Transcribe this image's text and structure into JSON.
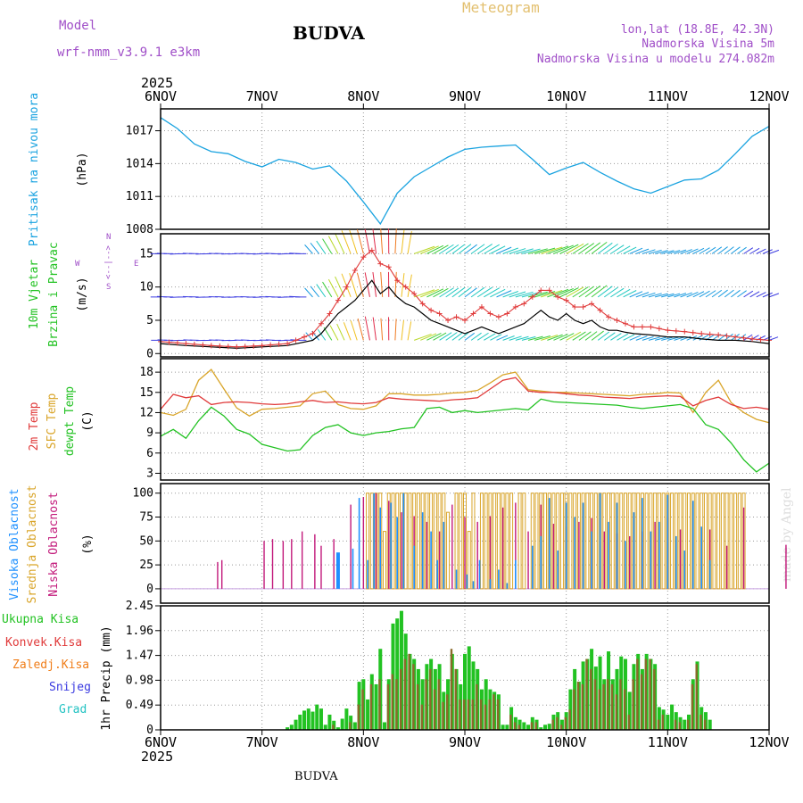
{
  "header": {
    "model_label": "Model",
    "model_name": "wrf-nmm_v3.9.1 e3km",
    "city_title": "BUDVA",
    "meteogram_label": "Meteogram",
    "lonlat": "lon,lat (18.8E, 42.3N)",
    "elevation": "Nadmorska Visina 5m",
    "model_elevation": "Nadmorska Visina u modelu 274.082m",
    "year_top": "2025",
    "year_bottom": "2025",
    "footer_city": "BUDVA",
    "watermark": "made by Angel"
  },
  "colors": {
    "pressure": "#1aa3e0",
    "temp2m": "#e03a3a",
    "sfc": "#d9a52a",
    "dew": "#22c222",
    "high_cloud": "#1e90ff",
    "mid_cloud": "#d9a52a",
    "low_cloud": "#c2187a",
    "total_precip": "#22c222",
    "conv_precip": "#e03a3a",
    "frozen_precip": "#f07e1a",
    "snow": "#3a3ae0",
    "hail": "#22c2c2",
    "model_text": "#a04fc8",
    "wind_line": "#000000",
    "gust": "#e03a3a"
  },
  "chart_data": [
    {
      "type": "line",
      "id": "pressure",
      "ylabel_main": "Pritisak na nivou mora",
      "ylabel_unit": "(hPa)",
      "yticks": [
        1008,
        1011,
        1014,
        1017
      ],
      "ylim": [
        1008,
        1019
      ],
      "x_hours": [
        0,
        4,
        8,
        12,
        16,
        20,
        24,
        28,
        32,
        36,
        40,
        44,
        48,
        52,
        56,
        60,
        64,
        68,
        72,
        76,
        80,
        84,
        88,
        92,
        96,
        100,
        104,
        108,
        112,
        116,
        120,
        124,
        128,
        132,
        136,
        140,
        144
      ],
      "values": [
        1018.2,
        1017.2,
        1015.8,
        1015.1,
        1014.9,
        1014.2,
        1013.7,
        1014.4,
        1014.1,
        1013.5,
        1013.8,
        1012.4,
        1010.5,
        1008.5,
        1011.3,
        1012.8,
        1013.7,
        1014.6,
        1015.3,
        1015.5,
        1015.6,
        1015.7,
        1014.4,
        1013.0,
        1013.6,
        1014.1,
        1013.2,
        1012.4,
        1011.7,
        1011.3,
        1011.9,
        1012.5,
        1012.6,
        1013.4,
        1014.9,
        1016.5,
        1017.4
      ]
    },
    {
      "type": "line",
      "id": "wind",
      "ylabel_main": "10m Vjetar",
      "ylabel_sub": "Brzina i Pravac",
      "ylabel_unit": "(m/s)",
      "compass": [
        "W",
        "<--|-->",
        "E",
        "N",
        "S"
      ],
      "yticks": [
        0,
        5,
        10,
        15
      ],
      "ylim": [
        -0.5,
        18
      ],
      "arrow_rows": [
        2,
        8.5,
        15
      ],
      "x_hours": [
        0,
        6,
        12,
        18,
        24,
        30,
        36,
        38,
        40,
        42,
        44,
        46,
        48,
        50,
        52,
        54,
        56,
        58,
        60,
        62,
        64,
        66,
        68,
        70,
        72,
        74,
        76,
        78,
        80,
        82,
        84,
        86,
        88,
        90,
        92,
        94,
        96,
        98,
        100,
        102,
        104,
        106,
        108,
        110,
        112,
        116,
        120,
        124,
        128,
        132,
        136,
        140,
        144
      ],
      "speed": [
        1.5,
        1.2,
        1.0,
        0.8,
        1.0,
        1.2,
        2.0,
        3.0,
        4.5,
        6.0,
        7.0,
        8.0,
        9.5,
        11.0,
        9.0,
        10.0,
        8.5,
        7.5,
        7.0,
        6.0,
        5.0,
        4.5,
        4.0,
        3.5,
        3.0,
        3.5,
        4.0,
        3.5,
        3.0,
        3.5,
        4.0,
        4.5,
        5.5,
        6.5,
        5.5,
        5.0,
        6.0,
        5.0,
        4.5,
        5.0,
        4.0,
        3.5,
        3.5,
        3.2,
        3.0,
        2.8,
        2.5,
        2.5,
        2.2,
        2.0,
        2.0,
        1.8,
        1.5
      ],
      "gust": [
        1.8,
        1.5,
        1.2,
        1.0,
        1.2,
        1.5,
        3.0,
        4.5,
        6.0,
        8.0,
        10.0,
        12.5,
        14.5,
        15.5,
        13.5,
        13.0,
        11.0,
        10.0,
        9.0,
        7.5,
        6.5,
        6.0,
        5.0,
        5.5,
        5.0,
        6.0,
        7.0,
        6.0,
        5.5,
        6.0,
        7.0,
        7.5,
        8.5,
        9.5,
        9.5,
        8.5,
        8.0,
        7.0,
        7.0,
        7.5,
        6.5,
        5.5,
        5.0,
        4.5,
        4.0,
        4.0,
        3.5,
        3.3,
        3.0,
        2.8,
        2.5,
        2.2,
        2.0
      ]
    },
    {
      "type": "line",
      "id": "temperature",
      "ylabel_main": "2m Temp",
      "ylabel_sub": "SFC Temp",
      "ylabel_sub2": "dewpt Temp",
      "ylabel_unit": "(C)",
      "yticks": [
        3,
        6,
        9,
        12,
        15,
        18
      ],
      "ylim": [
        2,
        20
      ],
      "x_hours": [
        0,
        3,
        6,
        9,
        12,
        15,
        18,
        21,
        24,
        27,
        30,
        33,
        36,
        39,
        42,
        45,
        48,
        51,
        54,
        57,
        60,
        63,
        66,
        69,
        72,
        75,
        78,
        81,
        84,
        87,
        90,
        93,
        96,
        99,
        102,
        105,
        108,
        111,
        114,
        117,
        120,
        123,
        126,
        129,
        132,
        135,
        138,
        141,
        144
      ],
      "t2m": [
        12.5,
        14.7,
        14.2,
        14.5,
        13.2,
        13.5,
        13.6,
        13.5,
        13.3,
        13.2,
        13.3,
        13.6,
        13.8,
        13.5,
        13.6,
        13.4,
        13.3,
        13.5,
        14.2,
        14.0,
        13.9,
        13.8,
        13.7,
        13.9,
        14.0,
        14.2,
        15.5,
        16.8,
        17.2,
        15.2,
        15.0,
        15.0,
        14.8,
        14.6,
        14.5,
        14.3,
        14.2,
        14.1,
        14.3,
        14.4,
        14.5,
        14.4,
        13.0,
        13.8,
        14.3,
        13.2,
        12.6,
        12.8,
        12.5
      ],
      "sfc": [
        12.0,
        11.6,
        12.5,
        16.8,
        18.4,
        15.5,
        12.7,
        11.5,
        12.5,
        12.6,
        12.8,
        13.0,
        14.8,
        15.2,
        13.2,
        12.6,
        12.5,
        13.0,
        14.8,
        14.8,
        14.6,
        14.6,
        14.7,
        14.9,
        15.0,
        15.3,
        16.4,
        17.6,
        18.0,
        15.4,
        15.2,
        15.0,
        15.0,
        14.9,
        14.8,
        14.7,
        14.6,
        14.5,
        14.7,
        14.8,
        15.0,
        14.9,
        12.0,
        15.0,
        16.8,
        13.5,
        12.0,
        11.0,
        10.5
      ],
      "dew": [
        8.5,
        9.5,
        8.2,
        10.8,
        12.8,
        11.5,
        9.5,
        8.8,
        7.3,
        6.8,
        6.3,
        6.5,
        8.6,
        9.8,
        10.2,
        9.0,
        8.6,
        9.0,
        9.2,
        9.6,
        9.8,
        12.6,
        12.8,
        12.0,
        12.3,
        12.0,
        12.2,
        12.4,
        12.6,
        12.4,
        14.0,
        13.6,
        13.5,
        13.4,
        13.3,
        13.2,
        13.1,
        12.8,
        12.6,
        12.8,
        13.0,
        13.2,
        12.6,
        10.2,
        9.5,
        7.5,
        5.0,
        3.2,
        4.5
      ]
    },
    {
      "type": "bar",
      "id": "clouds",
      "ylabel_high": "Visoka Oblacnost",
      "ylabel_mid": "Srednja Oblacnost",
      "ylabel_low": "Niska Oblacnost",
      "ylabel_unit": "(%)",
      "yticks": [
        0,
        25,
        50,
        75,
        100
      ],
      "ylim": [
        0,
        100
      ],
      "low_x": [
        13.5,
        14.5,
        24.5,
        26.5,
        29,
        31,
        33.5,
        36.5,
        38,
        41,
        45,
        48,
        51,
        54,
        57,
        60,
        63,
        66,
        69,
        72,
        75,
        78,
        81,
        84,
        87,
        90,
        93,
        96,
        99,
        102,
        105,
        108,
        111,
        114,
        117,
        120,
        123,
        126,
        130,
        134,
        138,
        148
      ],
      "low_v": [
        28,
        30,
        50,
        52,
        50,
        52,
        60,
        57,
        45,
        52,
        88,
        96,
        100,
        92,
        80,
        76,
        70,
        60,
        88,
        75,
        70,
        76,
        85,
        90,
        60,
        88,
        68,
        65,
        70,
        74,
        60,
        58,
        55,
        60,
        70,
        75,
        62,
        82,
        62,
        45,
        85,
        46
      ],
      "mid_x": [
        49,
        50,
        51,
        52,
        53,
        54,
        55,
        56,
        57,
        58,
        59,
        60,
        61,
        62,
        63,
        64,
        65,
        66,
        67,
        68,
        70,
        71,
        72,
        73,
        74,
        76,
        77,
        78,
        79,
        80,
        81,
        82,
        83,
        85,
        86,
        88,
        89,
        90,
        91,
        92,
        93,
        94,
        95,
        96,
        97,
        98,
        99,
        100,
        101,
        102,
        103,
        104,
        105,
        106,
        107,
        108,
        109,
        110,
        111,
        112,
        113,
        114,
        115,
        116,
        117,
        118,
        119,
        120,
        121,
        122,
        123,
        124,
        125,
        126,
        127,
        128,
        129,
        130,
        131,
        132,
        133,
        134,
        135,
        136,
        137,
        138
      ],
      "mid_v": [
        100,
        100,
        100,
        100,
        60,
        100,
        100,
        100,
        100,
        100,
        100,
        100,
        100,
        100,
        100,
        100,
        100,
        100,
        100,
        80,
        100,
        100,
        100,
        60,
        100,
        100,
        100,
        100,
        100,
        100,
        100,
        100,
        100,
        100,
        100,
        100,
        100,
        100,
        100,
        100,
        100,
        100,
        100,
        100,
        100,
        100,
        100,
        100,
        100,
        100,
        100,
        100,
        100,
        100,
        100,
        100,
        100,
        100,
        100,
        100,
        100,
        100,
        100,
        100,
        100,
        100,
        100,
        100,
        100,
        100,
        100,
        100,
        100,
        100,
        100,
        100,
        100,
        100,
        100,
        100,
        100,
        100,
        100,
        100,
        100,
        100
      ],
      "high_x": [
        42,
        45.5,
        47,
        49,
        50.5,
        52,
        54.5,
        56,
        57.5,
        60,
        62,
        64,
        65.5,
        67,
        70,
        72.5,
        74,
        75.5,
        78,
        80,
        82,
        84,
        88,
        90,
        92,
        94,
        96,
        98,
        100,
        102,
        104,
        106,
        108,
        110,
        112,
        114,
        116,
        118,
        120,
        122,
        124,
        126,
        128,
        130
      ],
      "high_v": [
        38,
        42,
        95,
        30,
        100,
        85,
        90,
        75,
        100,
        45,
        80,
        60,
        30,
        70,
        20,
        15,
        8,
        30,
        10,
        20,
        6,
        30,
        45,
        55,
        95,
        40,
        90,
        75,
        90,
        60,
        100,
        70,
        90,
        50,
        80,
        95,
        60,
        70,
        98,
        55,
        40,
        92,
        65,
        30
      ]
    },
    {
      "type": "bar",
      "id": "precip",
      "ylabel_main": "1hr Precip (mm)",
      "yticks": [
        0,
        0.49,
        0.98,
        1.47,
        1.96,
        2.45
      ],
      "ylim": [
        0,
        2.45
      ],
      "legend": [
        "Ukupna Kisa",
        "Konvek.Kisa",
        "Zaledj.Kisa",
        "Snijeg",
        "Grad"
      ],
      "x_hours": [
        30,
        31,
        32,
        33,
        34,
        35,
        36,
        37,
        38,
        39,
        40,
        41,
        42,
        43,
        44,
        45,
        46,
        47,
        48,
        49,
        50,
        51,
        52,
        53,
        54,
        55,
        56,
        57,
        58,
        59,
        60,
        61,
        62,
        63,
        64,
        65,
        66,
        67,
        68,
        69,
        70,
        71,
        72,
        73,
        74,
        75,
        76,
        77,
        78,
        79,
        80,
        81,
        82,
        83,
        84,
        85,
        86,
        87,
        88,
        89,
        90,
        91,
        92,
        93,
        94,
        95,
        96,
        97,
        98,
        99,
        100,
        101,
        102,
        103,
        104,
        105,
        106,
        107,
        108,
        109,
        110,
        111,
        112,
        113,
        114,
        115,
        116,
        117,
        118,
        119,
        120,
        121,
        122,
        123,
        124,
        125,
        126,
        127,
        128,
        129,
        130
      ],
      "total": [
        0.05,
        0.1,
        0.2,
        0.3,
        0.38,
        0.42,
        0.36,
        0.5,
        0.42,
        0.1,
        0.3,
        0.18,
        0.05,
        0.22,
        0.42,
        0.28,
        0.15,
        0.95,
        1.0,
        0.6,
        1.1,
        0.9,
        1.6,
        0.15,
        1.0,
        2.1,
        2.2,
        2.35,
        1.9,
        1.5,
        1.4,
        1.2,
        1.0,
        1.3,
        1.4,
        1.2,
        1.3,
        0.75,
        1.0,
        1.5,
        1.2,
        0.9,
        1.5,
        1.65,
        1.35,
        1.2,
        0.8,
        1.0,
        0.8,
        0.75,
        0.7,
        0.1,
        0.1,
        0.45,
        0.25,
        0.2,
        0.15,
        0.1,
        0.25,
        0.2,
        0.05,
        0.1,
        0.12,
        0.3,
        0.35,
        0.2,
        0.35,
        0.8,
        1.2,
        0.95,
        1.35,
        1.4,
        1.6,
        1.25,
        1.45,
        1.0,
        1.55,
        1.0,
        1.2,
        1.45,
        1.4,
        0.75,
        1.3,
        1.5,
        1.2,
        1.5,
        1.4,
        1.3,
        0.45,
        0.4,
        0.3,
        0.5,
        0.35,
        0.25,
        0.2,
        0.3,
        1.0,
        1.35,
        0.45,
        0.35,
        0.2
      ],
      "conv": [
        0.0,
        0.0,
        0.0,
        0.0,
        0.0,
        0.0,
        0.0,
        0.0,
        0.0,
        0.0,
        0.0,
        0.1,
        0.0,
        0.0,
        0.0,
        0.15,
        0.0,
        0.5,
        0.8,
        0.0,
        0.9,
        0.0,
        1.0,
        0.0,
        0.9,
        1.1,
        1.0,
        1.2,
        1.4,
        1.5,
        1.3,
        0.9,
        0.5,
        1.0,
        1.2,
        0.8,
        1.0,
        0.55,
        0.7,
        1.6,
        1.2,
        0.6,
        0.6,
        0.6,
        0.6,
        0.9,
        0.6,
        0.5,
        0.6,
        0.7,
        0.6,
        0.0,
        0.0,
        0.3,
        0.15,
        0.1,
        0.0,
        0.0,
        0.15,
        0.15,
        0.0,
        0.0,
        0.0,
        0.2,
        0.25,
        0.1,
        0.25,
        0.4,
        0.8,
        0.95,
        0.9,
        1.4,
        1.2,
        1.0,
        0.8,
        0.9,
        1.0,
        0.9,
        0.7,
        1.0,
        0.8,
        0.3,
        1.0,
        1.4,
        1.1,
        1.4,
        1.4,
        1.2,
        0.2,
        0.3,
        0.0,
        0.0,
        0.2,
        0.15,
        0.0,
        0.2,
        0.9,
        1.3,
        0.3,
        0.2,
        0.0
      ]
    }
  ],
  "xaxis": {
    "labels": [
      "6NOV",
      "7NOV",
      "8NOV",
      "9NOV",
      "10NOV",
      "11NOV",
      "12NOV"
    ],
    "hours": [
      0,
      24,
      48,
      72,
      96,
      120,
      144
    ]
  }
}
